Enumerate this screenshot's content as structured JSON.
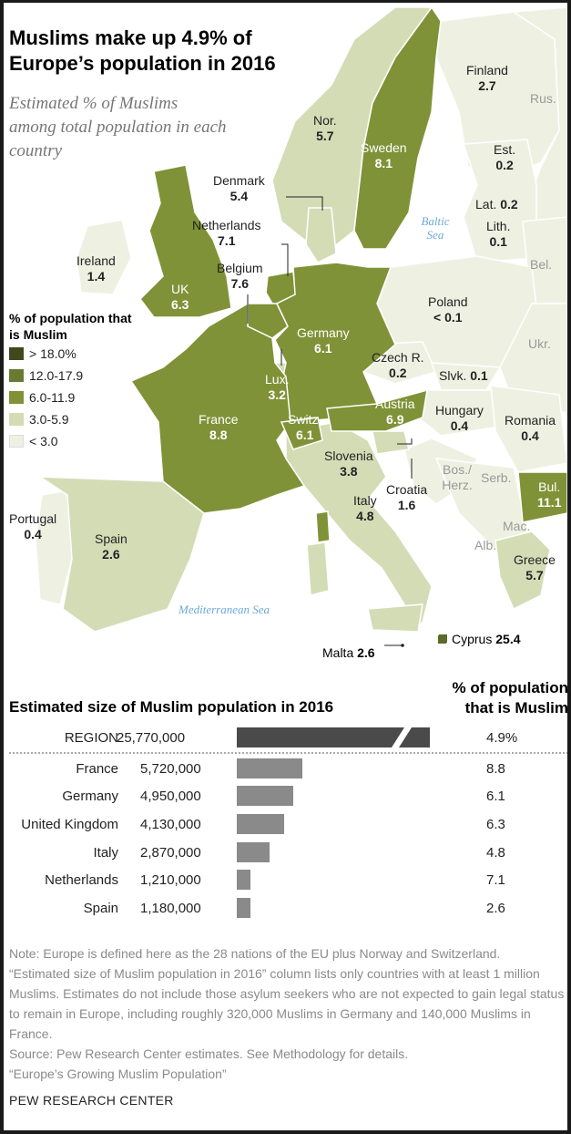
{
  "title": "Muslims make up 4.9% of Europe’s population in 2016",
  "subtitle": "Estimated % of Muslims among total population in each country",
  "legend": {
    "title": "% of population that is Muslim",
    "items": [
      {
        "label": "> 18.0%",
        "color": "#3f4a1c"
      },
      {
        "label": "12.0-17.9",
        "color": "#6b7a32"
      },
      {
        "label": "6.0-11.9",
        "color": "#7f9237"
      },
      {
        "label": "3.0-5.9",
        "color": "#d4dcb6"
      },
      {
        "label": "< 3.0",
        "color": "#eef1e2"
      }
    ]
  },
  "countries": {
    "finland": {
      "name": "Finland",
      "value": "2.7"
    },
    "norway": {
      "name": "Nor.",
      "value": "5.7"
    },
    "sweden": {
      "name": "Sweden",
      "value": "8.1"
    },
    "estonia": {
      "name": "Est.",
      "value": "0.2"
    },
    "latvia": {
      "name": "Lat.",
      "value": "0.2"
    },
    "lithuania": {
      "name": "Lith.",
      "value": "0.1"
    },
    "denmark": {
      "name": "Denmark",
      "value": "5.4"
    },
    "netherlands": {
      "name": "Netherlands",
      "value": "7.1"
    },
    "ireland": {
      "name": "Ireland",
      "value": "1.4"
    },
    "uk": {
      "name": "UK",
      "value": "6.3"
    },
    "belgium": {
      "name": "Belgium",
      "value": "7.6"
    },
    "poland": {
      "name": "Poland",
      "value": "< 0.1"
    },
    "germany": {
      "name": "Germany",
      "value": "6.1"
    },
    "czech": {
      "name": "Czech R.",
      "value": "0.2"
    },
    "slovakia": {
      "name": "Slvk.",
      "value": "0.1"
    },
    "luxembourg": {
      "name": "Lux.",
      "value": "3.2"
    },
    "austria": {
      "name": "Austria",
      "value": "6.9"
    },
    "hungary": {
      "name": "Hungary",
      "value": "0.4"
    },
    "romania": {
      "name": "Romania",
      "value": "0.4"
    },
    "france": {
      "name": "France",
      "value": "8.8"
    },
    "switzerland": {
      "name": "Switz.",
      "value": "6.1"
    },
    "slovenia": {
      "name": "Slovenia",
      "value": "3.8"
    },
    "croatia": {
      "name": "Croatia",
      "value": "1.6"
    },
    "bulgaria": {
      "name": "Bul.",
      "value": "11.1"
    },
    "portugal": {
      "name": "Portugal",
      "value": "0.4"
    },
    "spain": {
      "name": "Spain",
      "value": "2.6"
    },
    "italy": {
      "name": "Italy",
      "value": "4.8"
    },
    "greece": {
      "name": "Greece",
      "value": "5.7"
    },
    "cyprus": {
      "name": "Cyprus",
      "value": "25.4"
    },
    "malta": {
      "name": "Malta",
      "value": "2.6"
    }
  },
  "other_labels": {
    "rus": "Rus.",
    "bel": "Bel.",
    "ukr": "Ukr.",
    "serb": "Serb.",
    "bos": "Bos./ Herz.",
    "mac": "Mac.",
    "alb": "Alb."
  },
  "seas": {
    "baltic": "Baltic Sea",
    "mediterranean": "Mediterranean Sea"
  },
  "table": {
    "title": "Estimated size of Muslim population in 2016",
    "pct_header": "% of population that is Muslim",
    "rows": [
      {
        "country": "REGION",
        "population": "25,770,000",
        "pct": "4.9%"
      },
      {
        "country": "France",
        "population": "5,720,000",
        "pct": "8.8"
      },
      {
        "country": "Germany",
        "population": "4,950,000",
        "pct": "6.1"
      },
      {
        "country": "United Kingdom",
        "population": "4,130,000",
        "pct": "6.3"
      },
      {
        "country": "Italy",
        "population": "2,870,000",
        "pct": "4.8"
      },
      {
        "country": "Netherlands",
        "population": "1,210,000",
        "pct": "7.1"
      },
      {
        "country": "Spain",
        "population": "1,180,000",
        "pct": "2.6"
      }
    ]
  },
  "chart_data": {
    "type": "bar",
    "categories": [
      "REGION",
      "France",
      "Germany",
      "United Kingdom",
      "Italy",
      "Netherlands",
      "Spain"
    ],
    "values": [
      25770000,
      5720000,
      4950000,
      4130000,
      2870000,
      1210000,
      1180000
    ],
    "title": "Estimated size of Muslim population in 2016",
    "xlabel": "",
    "ylabel": ""
  },
  "note": "Note: Europe is defined here as the 28 nations of the EU plus Norway and Switzerland. “Estimated size of Muslim population in 2016” column lists only countries with at least 1 million Muslims. Estimates do not include those asylum seekers who are not expected to gain legal status to remain in Europe, including roughly 320,000 Muslims in Germany and 140,000 Muslims in France.",
  "source": "Source: Pew Research Center estimates. See Methodology for details.",
  "report": "“Europe’s Growing Muslim Population”",
  "credit": "PEW RESEARCH CENTER"
}
